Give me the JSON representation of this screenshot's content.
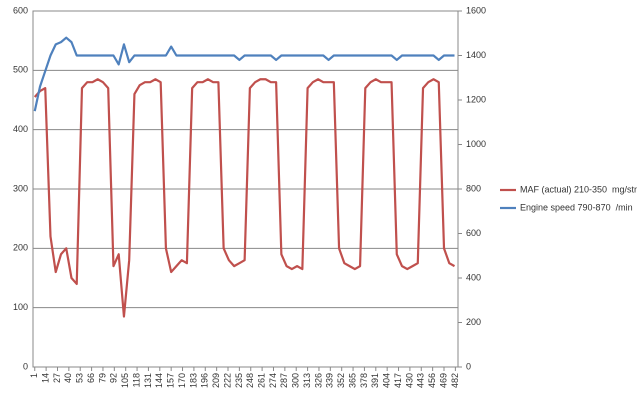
{
  "chart_data": {
    "type": "line",
    "x": [
      1,
      7,
      13,
      19,
      25,
      31,
      37,
      43,
      49,
      55,
      61,
      67,
      73,
      79,
      85,
      91,
      97,
      103,
      109,
      115,
      121,
      127,
      133,
      139,
      145,
      151,
      157,
      163,
      169,
      175,
      181,
      187,
      193,
      199,
      205,
      211,
      217,
      223,
      229,
      235,
      241,
      247,
      253,
      259,
      265,
      271,
      277,
      283,
      289,
      295,
      301,
      307,
      313,
      319,
      325,
      331,
      337,
      343,
      349,
      355,
      361,
      367,
      373,
      379,
      385,
      391,
      397,
      403,
      409,
      415,
      421,
      427,
      433,
      439,
      445,
      451,
      457,
      463,
      469,
      475,
      481
    ],
    "series": [
      {
        "name": "MAF (actual) 210-350  mg/str",
        "color": "#c0504d",
        "values": [
          455,
          465,
          470,
          220,
          160,
          190,
          200,
          150,
          140,
          470,
          480,
          480,
          485,
          480,
          470,
          170,
          190,
          85,
          180,
          460,
          475,
          480,
          480,
          485,
          480,
          200,
          160,
          170,
          180,
          175,
          470,
          480,
          480,
          485,
          480,
          480,
          200,
          180,
          170,
          175,
          180,
          470,
          480,
          485,
          485,
          480,
          480,
          190,
          170,
          165,
          170,
          165,
          470,
          480,
          485,
          480,
          480,
          480,
          200,
          175,
          170,
          165,
          170,
          470,
          480,
          485,
          480,
          480,
          480,
          190,
          170,
          165,
          170,
          175,
          470,
          480,
          485,
          480,
          200,
          175,
          170
        ]
      },
      {
        "name": "Engine speed 790-870  /min",
        "color": "#4f81bd",
        "axis": "y2",
        "values": [
          1150,
          1260,
          1330,
          1400,
          1450,
          1460,
          1480,
          1460,
          1400,
          1400,
          1400,
          1400,
          1400,
          1400,
          1400,
          1400,
          1360,
          1450,
          1370,
          1400,
          1400,
          1400,
          1400,
          1400,
          1400,
          1400,
          1440,
          1400,
          1400,
          1400,
          1400,
          1400,
          1400,
          1400,
          1400,
          1400,
          1400,
          1400,
          1400,
          1380,
          1400,
          1400,
          1400,
          1400,
          1400,
          1400,
          1380,
          1400,
          1400,
          1400,
          1400,
          1400,
          1400,
          1400,
          1400,
          1400,
          1380,
          1400,
          1400,
          1400,
          1400,
          1400,
          1400,
          1400,
          1400,
          1400,
          1400,
          1400,
          1400,
          1380,
          1400,
          1400,
          1400,
          1400,
          1400,
          1400,
          1400,
          1380,
          1400,
          1400,
          1400
        ]
      }
    ],
    "xlim": [
      -1,
      485
    ],
    "xticks": [
      1,
      14,
      27,
      40,
      53,
      66,
      79,
      92,
      105,
      118,
      131,
      144,
      157,
      170,
      183,
      196,
      209,
      222,
      235,
      248,
      261,
      274,
      287,
      300,
      313,
      326,
      339,
      352,
      365,
      378,
      391,
      404,
      417,
      430,
      443,
      456,
      469,
      482
    ],
    "ylim": [
      0,
      600
    ],
    "yticks": [
      0,
      100,
      200,
      300,
      400,
      500,
      600
    ],
    "y2lim": [
      0,
      1600
    ],
    "y2ticks": [
      0,
      200,
      400,
      600,
      800,
      1000,
      1200,
      1400,
      1600
    ],
    "grid": true,
    "legend": "right"
  }
}
